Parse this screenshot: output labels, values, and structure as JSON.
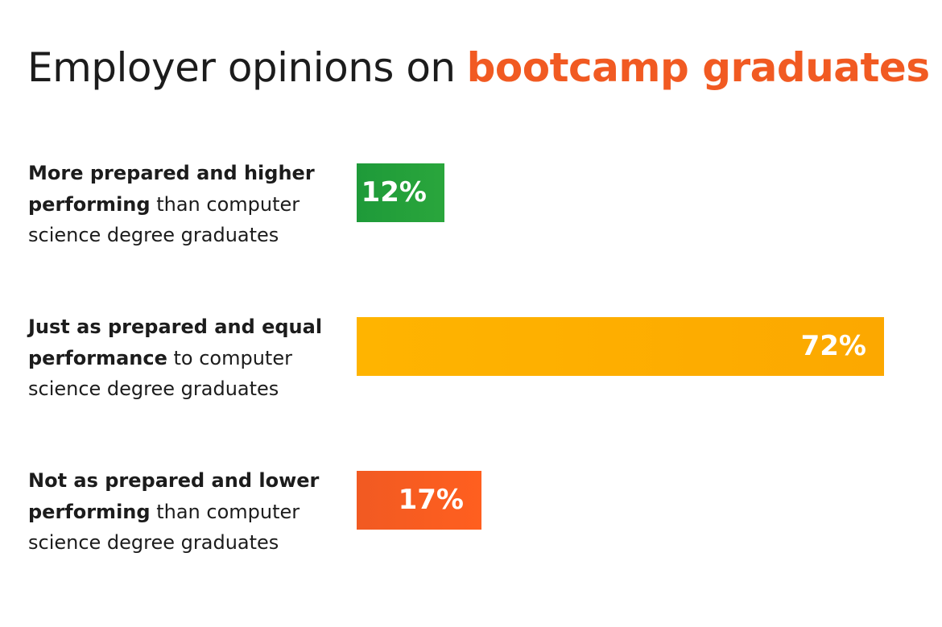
{
  "title": {
    "part1": "Employer opinions on",
    "part2": "bootcamp graduates"
  },
  "colors": {
    "accent": "#f15a22",
    "green": [
      "#1e9a39",
      "#2aa63c"
    ],
    "yellow": [
      "#ffb400",
      "#fca800"
    ],
    "orange": [
      "#f15a22",
      "#ff5f1f"
    ]
  },
  "chart_data": {
    "type": "bar",
    "orientation": "horizontal",
    "title": "Employer opinions on bootcamp graduates",
    "categories": [
      "More prepared and higher performing than computer science degree graduates",
      "Just as prepared and equal performance to computer science degree graduates",
      "Not as prepared and lower performing than computer science degree graduates"
    ],
    "values": [
      12,
      72,
      17
    ],
    "value_labels": [
      "12%",
      "72%",
      "17%"
    ],
    "xlim": [
      0,
      72
    ],
    "grid": false,
    "legend": "none"
  },
  "rows": [
    {
      "bold": "More prepared and higher performing",
      "rest": "than computer science degree graduates",
      "value_label": "12%",
      "color": "green"
    },
    {
      "bold": "Just as prepared and equal performance",
      "rest": "to computer science degree graduates",
      "value_label": "72%",
      "color": "yellow"
    },
    {
      "bold": "Not as prepared and lower performing",
      "rest": "than computer science degree graduates",
      "value_label": "17%",
      "color": "orange"
    }
  ]
}
